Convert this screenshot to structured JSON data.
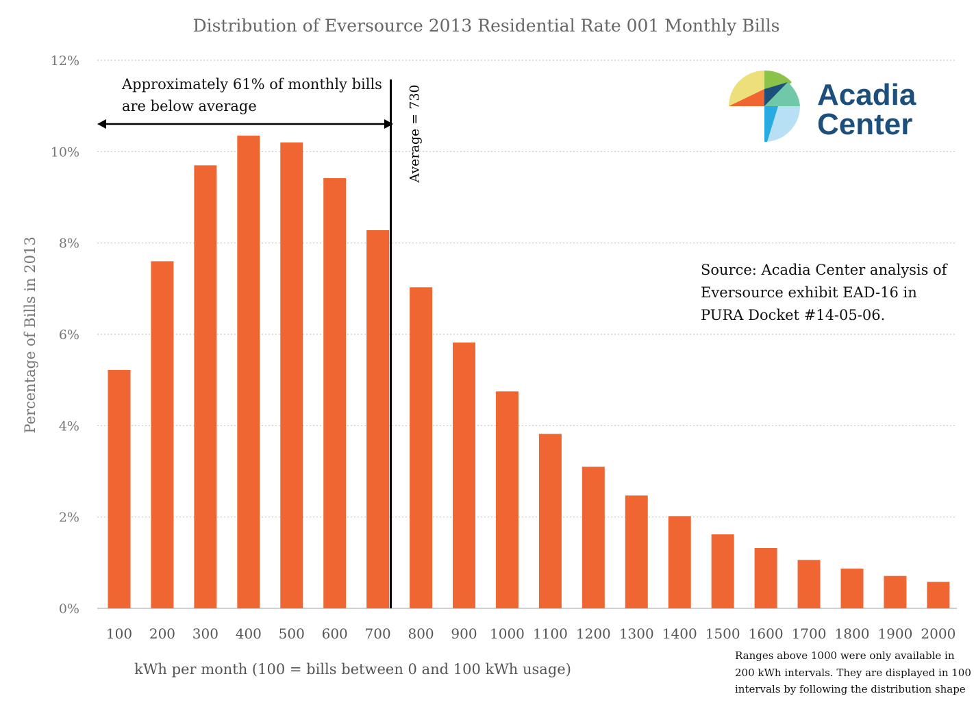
{
  "chart_data": {
    "type": "bar",
    "title": "Distribution of Eversource 2013 Residential Rate 001 Monthly Bills",
    "xlabel": "kWh per month (100 = bills between 0 and 100 kWh usage)",
    "ylabel": "Percentage of Bills in 2013",
    "categories": [
      "100",
      "200",
      "300",
      "400",
      "500",
      "600",
      "700",
      "800",
      "900",
      "1000",
      "1100",
      "1200",
      "1300",
      "1400",
      "1500",
      "1600",
      "1700",
      "1800",
      "1900",
      "2000"
    ],
    "values": [
      5.22,
      7.6,
      9.7,
      10.35,
      10.2,
      9.42,
      8.28,
      7.03,
      5.82,
      4.75,
      3.82,
      3.1,
      2.47,
      2.02,
      1.62,
      1.32,
      1.06,
      0.87,
      0.71,
      0.58
    ],
    "ylim": [
      0,
      12
    ],
    "yticks": [
      0,
      2,
      4,
      6,
      8,
      10,
      12
    ],
    "ytick_labels": [
      "0%",
      "2%",
      "4%",
      "6%",
      "8%",
      "10%",
      "12%"
    ],
    "grid": true,
    "bar_color": "#f06632",
    "average": {
      "value": 730,
      "label": "Average = 730"
    },
    "annotations": {
      "below_average_line1": "Approximately 61% of monthly bills",
      "below_average_line2": "are below average",
      "source_line1": "Source: Acadia Center analysis of",
      "source_line2": "Eversource exhibit EAD-16 in",
      "source_line3": "PURA Docket #14-05-06.",
      "note_line1": "Ranges above 1000 were only available in",
      "note_line2": "200 kWh intervals. They are displayed in 100",
      "note_line3": "intervals by following the distribution shape"
    }
  },
  "logo": {
    "line1": "Acadia",
    "line2": "Center",
    "text_color": "#1d4f7c",
    "colors": [
      "#ede07a",
      "#f06632",
      "#8bc34a",
      "#1d4f7c",
      "#6fc8a8",
      "#29abe2",
      "#b8e0f5"
    ]
  }
}
